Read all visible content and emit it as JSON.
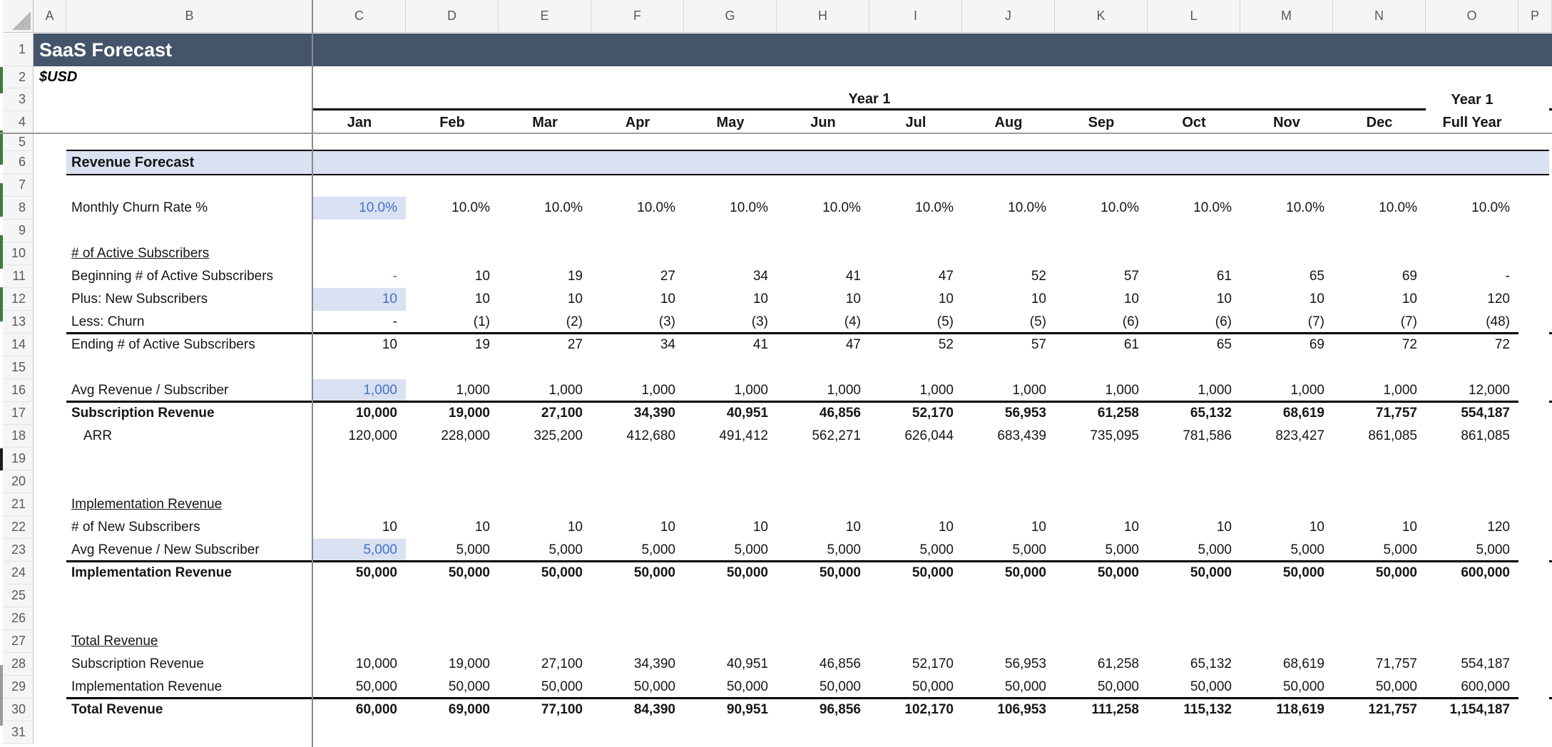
{
  "colors": {
    "title_bar": "#44546A",
    "section_band_fill": "#D9E1F2",
    "input_cell_fill": "#D9E1F2",
    "input_text_blue": "#4472C4"
  },
  "sheet": {
    "title": "SaaS Forecast",
    "currency_note": "$USD",
    "year1_span_label": "Year 1",
    "full_year_col": {
      "top": "Year 1",
      "bottom": "Full Year"
    },
    "section_header": "Revenue Forecast",
    "column_letters": [
      "A",
      "B",
      "C",
      "D",
      "E",
      "F",
      "G",
      "H",
      "I",
      "J",
      "K",
      "L",
      "M",
      "N",
      "O",
      "P"
    ],
    "row_numbers": [
      1,
      2,
      3,
      4,
      5,
      6,
      7,
      8,
      9,
      10,
      11,
      12,
      13,
      14,
      15,
      16,
      17,
      18,
      19,
      20,
      21,
      22,
      23,
      24,
      25,
      26,
      27,
      28,
      29,
      30,
      31
    ],
    "month_headers": [
      "Jan",
      "Feb",
      "Mar",
      "Apr",
      "May",
      "Jun",
      "Jul",
      "Aug",
      "Sep",
      "Oct",
      "Nov",
      "Dec"
    ],
    "rows": [
      {
        "row": 8,
        "label": "Monthly Churn Rate %",
        "first_input": true,
        "cells": [
          "10.0%",
          "10.0%",
          "10.0%",
          "10.0%",
          "10.0%",
          "10.0%",
          "10.0%",
          "10.0%",
          "10.0%",
          "10.0%",
          "10.0%",
          "10.0%",
          "10.0%"
        ]
      },
      {
        "row": 10,
        "label": "# of Active Subscribers",
        "label_underline": true,
        "cells": []
      },
      {
        "row": 11,
        "label": "Beginning # of Active Subscribers",
        "first_blue": true,
        "cells": [
          "-",
          "10",
          "19",
          "27",
          "34",
          "41",
          "47",
          "52",
          "57",
          "61",
          "65",
          "69",
          "-"
        ]
      },
      {
        "row": 12,
        "label": "Plus: New Subscribers",
        "first_input": true,
        "cells": [
          "10",
          "10",
          "10",
          "10",
          "10",
          "10",
          "10",
          "10",
          "10",
          "10",
          "10",
          "10",
          "120"
        ]
      },
      {
        "row": 13,
        "label": "Less: Churn",
        "border_bottom": true,
        "cells": [
          "-",
          "(1)",
          "(2)",
          "(3)",
          "(3)",
          "(4)",
          "(5)",
          "(5)",
          "(6)",
          "(6)",
          "(7)",
          "(7)",
          "(48)"
        ]
      },
      {
        "row": 14,
        "label": "Ending # of Active Subscribers",
        "cells": [
          "10",
          "19",
          "27",
          "34",
          "41",
          "47",
          "52",
          "57",
          "61",
          "65",
          "69",
          "72",
          "72"
        ]
      },
      {
        "row": 16,
        "label": "Avg Revenue / Subscriber",
        "first_input": true,
        "border_bottom": true,
        "cells": [
          "1,000",
          "1,000",
          "1,000",
          "1,000",
          "1,000",
          "1,000",
          "1,000",
          "1,000",
          "1,000",
          "1,000",
          "1,000",
          "1,000",
          "12,000"
        ]
      },
      {
        "row": 17,
        "label": "Subscription Revenue",
        "bold": true,
        "cells": [
          "10,000",
          "19,000",
          "27,100",
          "34,390",
          "40,951",
          "46,856",
          "52,170",
          "56,953",
          "61,258",
          "65,132",
          "68,619",
          "71,757",
          "554,187"
        ]
      },
      {
        "row": 18,
        "label": "ARR",
        "indent": true,
        "cells": [
          "120,000",
          "228,000",
          "325,200",
          "412,680",
          "491,412",
          "562,271",
          "626,044",
          "683,439",
          "735,095",
          "781,586",
          "823,427",
          "861,085",
          "861,085"
        ]
      },
      {
        "row": 21,
        "label": "Implementation Revenue",
        "label_underline": true,
        "cells": []
      },
      {
        "row": 22,
        "label": "# of New Subscribers",
        "cells": [
          "10",
          "10",
          "10",
          "10",
          "10",
          "10",
          "10",
          "10",
          "10",
          "10",
          "10",
          "10",
          "120"
        ]
      },
      {
        "row": 23,
        "label": "Avg Revenue / New Subscriber",
        "first_input": true,
        "border_bottom": true,
        "cells": [
          "5,000",
          "5,000",
          "5,000",
          "5,000",
          "5,000",
          "5,000",
          "5,000",
          "5,000",
          "5,000",
          "5,000",
          "5,000",
          "5,000",
          "5,000"
        ]
      },
      {
        "row": 24,
        "label": "Implementation Revenue",
        "bold": true,
        "cells": [
          "50,000",
          "50,000",
          "50,000",
          "50,000",
          "50,000",
          "50,000",
          "50,000",
          "50,000",
          "50,000",
          "50,000",
          "50,000",
          "50,000",
          "600,000"
        ]
      },
      {
        "row": 27,
        "label": "Total Revenue",
        "label_underline": true,
        "cells": []
      },
      {
        "row": 28,
        "label": "Subscription Revenue",
        "cells": [
          "10,000",
          "19,000",
          "27,100",
          "34,390",
          "40,951",
          "46,856",
          "52,170",
          "56,953",
          "61,258",
          "65,132",
          "68,619",
          "71,757",
          "554,187"
        ]
      },
      {
        "row": 29,
        "label": "Implementation Revenue",
        "border_bottom": true,
        "cells": [
          "50,000",
          "50,000",
          "50,000",
          "50,000",
          "50,000",
          "50,000",
          "50,000",
          "50,000",
          "50,000",
          "50,000",
          "50,000",
          "50,000",
          "600,000"
        ]
      },
      {
        "row": 30,
        "label": "Total Revenue",
        "bold": true,
        "cells": [
          "60,000",
          "69,000",
          "77,100",
          "84,390",
          "90,951",
          "96,856",
          "102,170",
          "106,953",
          "111,258",
          "115,132",
          "118,619",
          "121,757",
          "1,154,187"
        ]
      }
    ]
  }
}
